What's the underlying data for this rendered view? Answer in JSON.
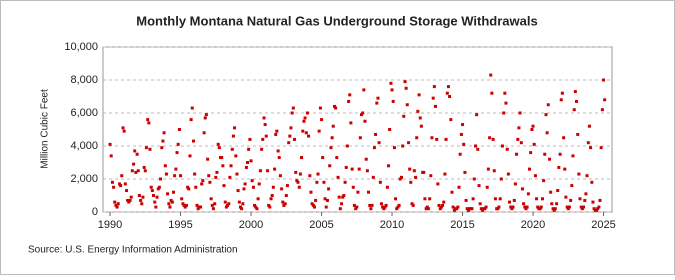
{
  "chart_data": {
    "type": "scatter",
    "title": "Monthly Montana Natural  Gas Underground Storage Withdrawals",
    "y_label": "Million Cubic Feet",
    "source": "Source: U.S. Energy Information Administration",
    "color": "#cc0000",
    "grid": true,
    "xlim": [
      1989.5,
      2025.6
    ],
    "xticks": [
      1990,
      1995,
      2000,
      2005,
      2010,
      2015,
      2020,
      2025
    ],
    "ylim": [
      0,
      10000
    ],
    "yticks": [
      0,
      {
        "value": 2000,
        "label": "2,000"
      },
      {
        "value": 4000,
        "label": "4,000"
      },
      {
        "value": 6000,
        "label": "6,000"
      },
      {
        "value": 8000,
        "label": "8,000"
      },
      {
        "value": 10000,
        "label": "10,000"
      }
    ],
    "x": [
      1990,
      1990.08,
      1990.17,
      1990.25,
      1990.33,
      1990.42,
      1990.5,
      1990.58,
      1990.67,
      1990.75,
      1990.83,
      1990.92,
      1991,
      1991.08,
      1991.17,
      1991.25,
      1991.33,
      1991.42,
      1991.5,
      1991.58,
      1991.67,
      1991.75,
      1991.83,
      1991.92,
      1992,
      1992.08,
      1992.17,
      1992.25,
      1992.33,
      1992.42,
      1992.5,
      1992.58,
      1992.67,
      1992.75,
      1992.83,
      1992.92,
      1993,
      1993.08,
      1993.17,
      1993.25,
      1993.33,
      1993.42,
      1993.5,
      1993.58,
      1993.67,
      1993.75,
      1993.83,
      1993.92,
      1994,
      1994.08,
      1994.17,
      1994.25,
      1994.33,
      1994.42,
      1994.5,
      1994.58,
      1994.67,
      1994.75,
      1994.83,
      1994.92,
      1995,
      1995.08,
      1995.17,
      1995.25,
      1995.33,
      1995.42,
      1995.5,
      1995.58,
      1995.67,
      1995.75,
      1995.83,
      1995.92,
      1996,
      1996.08,
      1996.17,
      1996.25,
      1996.33,
      1996.42,
      1996.5,
      1996.58,
      1996.67,
      1996.75,
      1996.83,
      1996.92,
      1997,
      1997.08,
      1997.17,
      1997.25,
      1997.33,
      1997.42,
      1997.5,
      1997.58,
      1997.67,
      1997.75,
      1997.83,
      1997.92,
      1998,
      1998.08,
      1998.17,
      1998.25,
      1998.33,
      1998.42,
      1998.5,
      1998.58,
      1998.67,
      1998.75,
      1998.83,
      1998.92,
      1999,
      1999.08,
      1999.17,
      1999.25,
      1999.33,
      1999.42,
      1999.5,
      1999.58,
      1999.67,
      1999.75,
      1999.83,
      1999.92,
      2000,
      2000.08,
      2000.17,
      2000.25,
      2000.33,
      2000.42,
      2000.5,
      2000.58,
      2000.67,
      2000.75,
      2000.83,
      2000.92,
      2001,
      2001.08,
      2001.17,
      2001.25,
      2001.33,
      2001.42,
      2001.5,
      2001.58,
      2001.67,
      2001.75,
      2001.83,
      2001.92,
      2002,
      2002.08,
      2002.17,
      2002.25,
      2002.33,
      2002.42,
      2002.5,
      2002.58,
      2002.67,
      2002.75,
      2002.83,
      2002.92,
      2003,
      2003.08,
      2003.17,
      2003.25,
      2003.33,
      2003.42,
      2003.5,
      2003.58,
      2003.67,
      2003.75,
      2003.83,
      2003.92,
      2004,
      2004.08,
      2004.17,
      2004.25,
      2004.33,
      2004.42,
      2004.5,
      2004.58,
      2004.67,
      2004.75,
      2004.83,
      2004.92,
      2005,
      2005.08,
      2005.17,
      2005.25,
      2005.33,
      2005.42,
      2005.5,
      2005.58,
      2005.67,
      2005.75,
      2005.83,
      2005.92,
      2006,
      2006.08,
      2006.17,
      2006.25,
      2006.33,
      2006.42,
      2006.5,
      2006.58,
      2006.67,
      2006.75,
      2006.83,
      2006.92,
      2007,
      2007.08,
      2007.17,
      2007.25,
      2007.33,
      2007.42,
      2007.5,
      2007.58,
      2007.67,
      2007.75,
      2007.83,
      2007.92,
      2008,
      2008.08,
      2008.17,
      2008.25,
      2008.33,
      2008.42,
      2008.5,
      2008.58,
      2008.67,
      2008.75,
      2008.83,
      2008.92,
      2009,
      2009.08,
      2009.17,
      2009.25,
      2009.33,
      2009.42,
      2009.5,
      2009.58,
      2009.67,
      2009.75,
      2009.83,
      2009.92,
      2010,
      2010.08,
      2010.17,
      2010.25,
      2010.33,
      2010.42,
      2010.5,
      2010.58,
      2010.67,
      2010.75,
      2010.83,
      2010.92,
      2011,
      2011.08,
      2011.17,
      2011.25,
      2011.33,
      2011.42,
      2011.5,
      2011.58,
      2011.67,
      2011.75,
      2011.83,
      2011.92,
      2012,
      2012.08,
      2012.17,
      2012.25,
      2012.33,
      2012.42,
      2012.5,
      2012.58,
      2012.67,
      2012.75,
      2012.83,
      2012.92,
      2013,
      2013.08,
      2013.17,
      2013.25,
      2013.33,
      2013.42,
      2013.5,
      2013.58,
      2013.67,
      2013.75,
      2013.83,
      2013.92,
      2014,
      2014.08,
      2014.17,
      2014.25,
      2014.33,
      2014.42,
      2014.5,
      2014.58,
      2014.67,
      2014.75,
      2014.83,
      2014.92,
      2015,
      2015.08,
      2015.17,
      2015.25,
      2015.33,
      2015.42,
      2015.5,
      2015.58,
      2015.67,
      2015.75,
      2015.83,
      2015.92,
      2016,
      2016.08,
      2016.17,
      2016.25,
      2016.33,
      2016.42,
      2016.5,
      2016.58,
      2016.67,
      2016.75,
      2016.83,
      2016.92,
      2017,
      2017.08,
      2017.17,
      2017.25,
      2017.33,
      2017.42,
      2017.5,
      2017.58,
      2017.67,
      2017.75,
      2017.83,
      2017.92,
      2018,
      2018.08,
      2018.17,
      2018.25,
      2018.33,
      2018.42,
      2018.5,
      2018.58,
      2018.67,
      2018.75,
      2018.83,
      2018.92,
      2019,
      2019.08,
      2019.17,
      2019.25,
      2019.33,
      2019.42,
      2019.5,
      2019.58,
      2019.67,
      2019.75,
      2019.83,
      2019.92,
      2020,
      2020.08,
      2020.17,
      2020.25,
      2020.33,
      2020.42,
      2020.5,
      2020.58,
      2020.67,
      2020.75,
      2020.83,
      2020.92,
      2021,
      2021.08,
      2021.17,
      2021.25,
      2021.33,
      2021.42,
      2021.5,
      2021.58,
      2021.67,
      2021.75,
      2021.83,
      2021.92,
      2022,
      2022.08,
      2022.17,
      2022.25,
      2022.33,
      2022.42,
      2022.5,
      2022.58,
      2022.67,
      2022.75,
      2022.83,
      2022.92,
      2023,
      2023.08,
      2023.17,
      2023.25,
      2023.33,
      2023.42,
      2023.5,
      2023.58,
      2023.67,
      2023.75,
      2023.83,
      2023.92,
      2024,
      2024.08,
      2024.17,
      2024.25,
      2024.33,
      2024.42,
      2024.5,
      2024.58,
      2024.67,
      2024.75,
      2024.83,
      2024.92,
      2025,
      2025.08
    ],
    "values": [
      4100,
      3400,
      1800,
      1500,
      600,
      400,
      300,
      500,
      1700,
      1600,
      2200,
      5100,
      4900,
      1700,
      1300,
      700,
      600,
      700,
      900,
      2500,
      2900,
      3700,
      2400,
      3500,
      2500,
      1000,
      700,
      500,
      900,
      2700,
      2500,
      3900,
      5600,
      5400,
      3800,
      1500,
      1300,
      1000,
      600,
      300,
      900,
      1400,
      1500,
      2000,
      3900,
      4300,
      4800,
      2800,
      2300,
      1100,
      500,
      300,
      700,
      600,
      1200,
      2200,
      2600,
      3600,
      4100,
      5000,
      2200,
      800,
      500,
      400,
      300,
      400,
      1500,
      1400,
      3400,
      5600,
      6300,
      4300,
      2300,
      1500,
      400,
      200,
      300,
      300,
      1700,
      1900,
      4800,
      5700,
      5900,
      3200,
      2200,
      1800,
      800,
      400,
      200,
      500,
      2100,
      2400,
      4100,
      3900,
      3300,
      3300,
      2800,
      1600,
      600,
      300,
      400,
      500,
      2100,
      2800,
      3800,
      4600,
      5100,
      3400,
      2300,
      1300,
      600,
      300,
      200,
      500,
      1400,
      1700,
      2700,
      3000,
      3800,
      4400,
      3100,
      1900,
      1500,
      400,
      300,
      200,
      800,
      1700,
      2500,
      3800,
      4400,
      5700,
      5300,
      4600,
      2500,
      400,
      300,
      800,
      1000,
      1500,
      2600,
      4700,
      4900,
      3700,
      3300,
      2200,
      1400,
      600,
      400,
      500,
      1000,
      1600,
      4200,
      4600,
      5100,
      6000,
      6300,
      4400,
      2400,
      1900,
      1800,
      1500,
      2300,
      3300,
      4900,
      5500,
      5700,
      4800,
      6000,
      4600,
      2200,
      1200,
      500,
      400,
      300,
      700,
      1800,
      2300,
      4900,
      6300,
      5600,
      3300,
      1800,
      800,
      300,
      700,
      1400,
      2800,
      3900,
      4500,
      5200,
      6400,
      6300,
      3300,
      2100,
      900,
      200,
      500,
      900,
      1000,
      1800,
      2700,
      4000,
      6700,
      7100,
      5400,
      2600,
      1500,
      400,
      200,
      300,
      1200,
      2600,
      4500,
      5900,
      6000,
      7400,
      5500,
      3200,
      2500,
      1200,
      400,
      200,
      400,
      2100,
      3900,
      4700,
      6600,
      6900,
      4200,
      1800,
      500,
      300,
      200,
      300,
      400,
      1500,
      2800,
      5000,
      7800,
      7400,
      6700,
      3900,
      800,
      200,
      300,
      400,
      2000,
      2100,
      4000,
      5800,
      7900,
      7500,
      6500,
      4200,
      2600,
      1800,
      500,
      400,
      2500,
      2100,
      4500,
      6100,
      7100,
      5700,
      5200,
      2400,
      2400,
      800,
      200,
      300,
      200,
      800,
      2200,
      4500,
      6900,
      7600,
      6400,
      4400,
      1700,
      400,
      200,
      300,
      400,
      600,
      2300,
      4400,
      7200,
      7600,
      7000,
      5600,
      1200,
      300,
      100,
      200,
      200,
      300,
      1500,
      3500,
      4700,
      5300,
      4100,
      2400,
      700,
      200,
      100,
      200,
      200,
      200,
      800,
      2000,
      4000,
      5900,
      3800,
      1600,
      500,
      200,
      100,
      200,
      200,
      300,
      1500,
      2600,
      4500,
      8300,
      7200,
      4400,
      2500,
      800,
      200,
      200,
      300,
      800,
      2000,
      4000,
      6000,
      7200,
      6600,
      3800,
      2300,
      600,
      300,
      200,
      300,
      700,
      1700,
      3500,
      4400,
      5100,
      6000,
      4200,
      1400,
      500,
      300,
      200,
      300,
      1100,
      2600,
      3600,
      5000,
      5200,
      4100,
      2200,
      800,
      300,
      200,
      200,
      300,
      800,
      1900,
      3500,
      5900,
      4800,
      6500,
      3200,
      1200,
      500,
      200,
      100,
      200,
      500,
      1300,
      2700,
      3500,
      6800,
      7200,
      4500,
      2600,
      900,
      300,
      200,
      300,
      700,
      1600,
      3400,
      6200,
      7300,
      6700,
      4700,
      2300,
      800,
      300,
      200,
      300,
      700,
      1100,
      2200,
      4200,
      5200,
      3900,
      1800,
      600,
      200,
      100,
      100,
      200,
      300,
      700,
      3900,
      6200,
      8000,
      6800
    ]
  }
}
